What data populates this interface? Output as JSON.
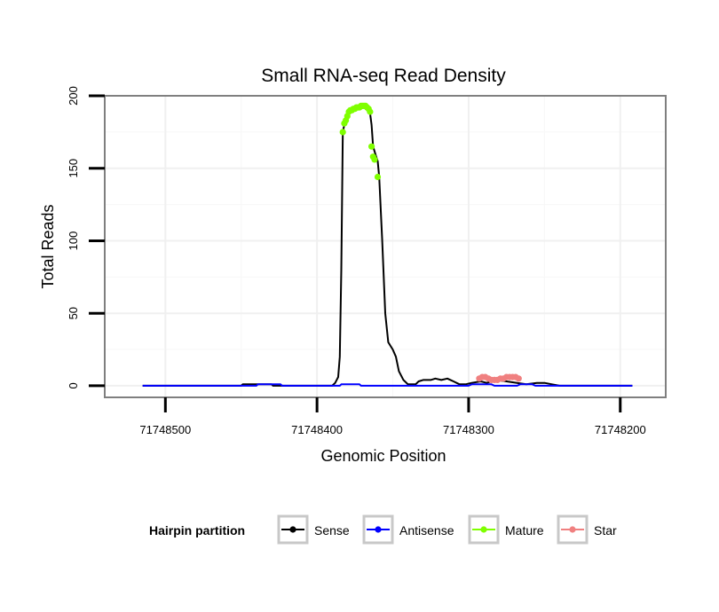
{
  "chart_data": {
    "type": "line",
    "title": "Small RNA-seq Read Density",
    "xlabel": "Genomic Position",
    "ylabel": "Total Reads",
    "xlim": [
      71748540,
      71748170
    ],
    "ylim": [
      -8,
      200
    ],
    "x_reversed": true,
    "x_ticks": [
      {
        "value": 71748500,
        "label": "71748500"
      },
      {
        "value": 71748400,
        "label": "71748400"
      },
      {
        "value": 71748300,
        "label": "71748300"
      },
      {
        "value": 71748200,
        "label": "71748200"
      }
    ],
    "y_ticks": [
      {
        "value": 0,
        "label": "0"
      },
      {
        "value": 50,
        "label": "50"
      },
      {
        "value": 100,
        "label": "100"
      },
      {
        "value": 150,
        "label": "150"
      },
      {
        "value": 200,
        "label": "200"
      }
    ],
    "grid": true,
    "legend": {
      "title": "Hairpin partition",
      "position": "bottom",
      "entries": [
        {
          "name": "Sense",
          "color": "#000000"
        },
        {
          "name": "Antisense",
          "color": "#0000ff"
        },
        {
          "name": "Mature",
          "color": "#7fff00"
        },
        {
          "name": "Star",
          "color": "#f08080"
        }
      ]
    },
    "series": [
      {
        "name": "Sense",
        "color": "#000000",
        "style": "line",
        "points": [
          [
            71748515,
            0
          ],
          [
            71748450,
            0
          ],
          [
            71748449,
            1
          ],
          [
            71748430,
            1
          ],
          [
            71748429,
            0
          ],
          [
            71748395,
            0
          ],
          [
            71748390,
            0
          ],
          [
            71748388,
            2
          ],
          [
            71748386,
            6
          ],
          [
            71748385,
            20
          ],
          [
            71748384,
            80
          ],
          [
            71748383,
            175
          ],
          [
            71748382,
            180
          ],
          [
            71748380,
            185
          ],
          [
            71748378,
            190
          ],
          [
            71748375,
            191
          ],
          [
            71748372,
            192
          ],
          [
            71748369,
            193
          ],
          [
            71748367,
            193
          ],
          [
            71748366,
            191
          ],
          [
            71748365,
            188
          ],
          [
            71748364,
            180
          ],
          [
            71748363,
            165
          ],
          [
            71748361,
            158
          ],
          [
            71748360,
            155
          ],
          [
            71748359,
            144
          ],
          [
            71748357,
            100
          ],
          [
            71748355,
            50
          ],
          [
            71748353,
            30
          ],
          [
            71748350,
            25
          ],
          [
            71748348,
            20
          ],
          [
            71748346,
            10
          ],
          [
            71748343,
            4
          ],
          [
            71748340,
            1
          ],
          [
            71748335,
            1
          ],
          [
            71748333,
            3
          ],
          [
            71748330,
            4
          ],
          [
            71748325,
            4
          ],
          [
            71748322,
            5
          ],
          [
            71748318,
            4
          ],
          [
            71748314,
            5
          ],
          [
            71748310,
            3
          ],
          [
            71748306,
            1
          ],
          [
            71748302,
            1
          ],
          [
            71748298,
            2
          ],
          [
            71748292,
            3
          ],
          [
            71748288,
            2
          ],
          [
            71748282,
            4
          ],
          [
            71748275,
            3
          ],
          [
            71748268,
            2
          ],
          [
            71748262,
            1
          ],
          [
            71748255,
            2
          ],
          [
            71748250,
            2
          ],
          [
            71748245,
            1
          ],
          [
            71748240,
            0
          ],
          [
            71748192,
            0
          ]
        ]
      },
      {
        "name": "Antisense",
        "color": "#0000ff",
        "style": "line",
        "points": [
          [
            71748515,
            0
          ],
          [
            71748440,
            0
          ],
          [
            71748439,
            1
          ],
          [
            71748424,
            1
          ],
          [
            71748423,
            0
          ],
          [
            71748385,
            0
          ],
          [
            71748384,
            1
          ],
          [
            71748372,
            1
          ],
          [
            71748371,
            0
          ],
          [
            71748300,
            0
          ],
          [
            71748298,
            1
          ],
          [
            71748285,
            1
          ],
          [
            71748283,
            0
          ],
          [
            71748268,
            0
          ],
          [
            71748266,
            1
          ],
          [
            71748258,
            1
          ],
          [
            71748256,
            0
          ],
          [
            71748192,
            0
          ]
        ]
      },
      {
        "name": "Mature",
        "color": "#7fff00",
        "style": "points",
        "points": [
          [
            71748383,
            175
          ],
          [
            71748382,
            181
          ],
          [
            71748381,
            183
          ],
          [
            71748380,
            186
          ],
          [
            71748379,
            189
          ],
          [
            71748378,
            190
          ],
          [
            71748377,
            190
          ],
          [
            71748376,
            191
          ],
          [
            71748375,
            191
          ],
          [
            71748374,
            192
          ],
          [
            71748373,
            192
          ],
          [
            71748372,
            192
          ],
          [
            71748371,
            193
          ],
          [
            71748370,
            193
          ],
          [
            71748369,
            193
          ],
          [
            71748368,
            193
          ],
          [
            71748367,
            192
          ],
          [
            71748366,
            191
          ],
          [
            71748365,
            189
          ],
          [
            71748364,
            165
          ],
          [
            71748363,
            158
          ],
          [
            71748362,
            156
          ],
          [
            71748360,
            144
          ]
        ]
      },
      {
        "name": "Star",
        "color": "#f08080",
        "style": "points",
        "points": [
          [
            71748293,
            5
          ],
          [
            71748291,
            6
          ],
          [
            71748289,
            6
          ],
          [
            71748287,
            5
          ],
          [
            71748285,
            4
          ],
          [
            71748283,
            4
          ],
          [
            71748281,
            4
          ],
          [
            71748279,
            5
          ],
          [
            71748277,
            5
          ],
          [
            71748275,
            6
          ],
          [
            71748273,
            6
          ],
          [
            71748271,
            6
          ],
          [
            71748269,
            6
          ],
          [
            71748267,
            5
          ]
        ]
      }
    ]
  }
}
